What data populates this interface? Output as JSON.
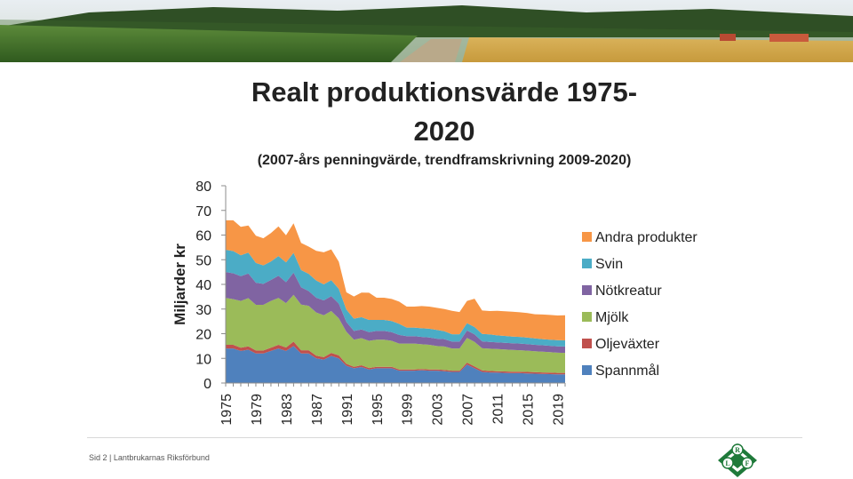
{
  "page": {
    "footer": "Sid 2 | Lantbrukarnas Riksförbund",
    "logo_letters": [
      "R",
      "L",
      "F"
    ]
  },
  "chart_data": {
    "type": "area",
    "stacked": true,
    "title": "Realt produktionsvärde 1975-",
    "title_line2": "2020",
    "subtitle": "(2007-års penningvärde, trendframskrivning 2009-2020)",
    "ylabel": "Miljarder kr",
    "xlabel": "",
    "ylim": [
      0,
      80
    ],
    "yticks": [
      0,
      10,
      20,
      30,
      40,
      50,
      60,
      70,
      80
    ],
    "xticks": [
      "1975",
      "1979",
      "1983",
      "1987",
      "1991",
      "1995",
      "1999",
      "2003",
      "2007",
      "2011",
      "2015",
      "2019"
    ],
    "legend_position": "right",
    "x": [
      1975,
      1976,
      1977,
      1978,
      1979,
      1980,
      1981,
      1982,
      1983,
      1984,
      1985,
      1986,
      1987,
      1988,
      1989,
      1990,
      1991,
      1992,
      1993,
      1994,
      1995,
      1996,
      1997,
      1998,
      1999,
      2000,
      2001,
      2002,
      2003,
      2004,
      2005,
      2006,
      2007,
      2008,
      2009,
      2010,
      2011,
      2012,
      2013,
      2014,
      2015,
      2016,
      2017,
      2018,
      2019,
      2020
    ],
    "series": [
      {
        "name": "Spannmål",
        "color": "#4f81bd",
        "values": [
          14,
          14,
          13,
          13.5,
          12,
          12,
          13,
          14,
          13,
          15,
          12,
          12,
          10,
          9.5,
          11,
          10,
          7,
          6,
          6.5,
          5.5,
          6,
          6,
          6,
          5,
          5,
          5,
          5.2,
          5,
          5,
          4.8,
          4.5,
          4.5,
          7.5,
          6,
          4.5,
          4.3,
          4.2,
          4.1,
          4,
          4,
          3.9,
          3.8,
          3.7,
          3.6,
          3.5,
          3.5
        ]
      },
      {
        "name": "Oljeväxter",
        "color": "#c0504d",
        "values": [
          1.5,
          1.5,
          1.3,
          1.4,
          1.2,
          1.2,
          1.3,
          1.5,
          1.4,
          1.8,
          1.3,
          1.3,
          1.1,
          1,
          1.2,
          1.2,
          0.8,
          0.6,
          0.7,
          0.6,
          0.6,
          0.6,
          0.6,
          0.5,
          0.5,
          0.5,
          0.5,
          0.5,
          0.5,
          0.5,
          0.5,
          0.5,
          0.8,
          0.7,
          0.6,
          0.6,
          0.6,
          0.6,
          0.6,
          0.6,
          0.6,
          0.6,
          0.6,
          0.6,
          0.6,
          0.6
        ]
      },
      {
        "name": "Mjölk",
        "color": "#9bbb59",
        "values": [
          19,
          18.5,
          19,
          19.5,
          18.5,
          18.5,
          19,
          19,
          18,
          19,
          18.5,
          18,
          17.5,
          17,
          17,
          15,
          13,
          11,
          11,
          11,
          11,
          11,
          10.5,
          10.5,
          10.5,
          10.5,
          10,
          10,
          9.5,
          9.5,
          9,
          9,
          10,
          10,
          9,
          9,
          9,
          8.9,
          8.8,
          8.7,
          8.6,
          8.5,
          8.4,
          8.3,
          8.2,
          8.1
        ]
      },
      {
        "name": "Nötkreatur",
        "color": "#8064a2",
        "values": [
          10.5,
          10.5,
          10,
          10,
          9,
          8.5,
          8.5,
          9,
          8.5,
          9,
          7,
          6,
          6,
          6,
          6,
          6,
          4,
          3.5,
          3.5,
          3.5,
          3.5,
          3.5,
          3.5,
          3.5,
          3,
          3,
          3,
          3,
          3,
          3,
          2.8,
          2.8,
          3,
          3,
          2.8,
          2.8,
          2.7,
          2.7,
          2.7,
          2.7,
          2.7,
          2.6,
          2.6,
          2.6,
          2.6,
          2.6
        ]
      },
      {
        "name": "Svin",
        "color": "#4bacc6",
        "values": [
          9,
          9,
          8.5,
          8.5,
          8,
          7.5,
          7.5,
          8,
          8,
          8,
          7,
          7,
          7,
          6.5,
          6.5,
          6,
          5,
          5,
          5,
          5,
          4.5,
          4.5,
          4.5,
          4.5,
          3.5,
          3.5,
          3.5,
          3.5,
          3.5,
          3.2,
          3,
          3,
          3,
          3,
          3,
          3,
          2.8,
          2.8,
          2.7,
          2.7,
          2.6,
          2.6,
          2.5,
          2.5,
          2.5,
          2.5
        ]
      },
      {
        "name": "Andra produkter",
        "color": "#f79646",
        "values": [
          12,
          12.5,
          11.5,
          11,
          11,
          11,
          11.5,
          12,
          11,
          12,
          11,
          11,
          12,
          13,
          12.5,
          11,
          7,
          9,
          10,
          11,
          9,
          9,
          9,
          9,
          8.5,
          8.5,
          9,
          9,
          9,
          9,
          9.5,
          9,
          9,
          11.5,
          9.5,
          9.5,
          10,
          10,
          10.1,
          10,
          10,
          9.8,
          10,
          10,
          10,
          10.2
        ]
      }
    ]
  }
}
